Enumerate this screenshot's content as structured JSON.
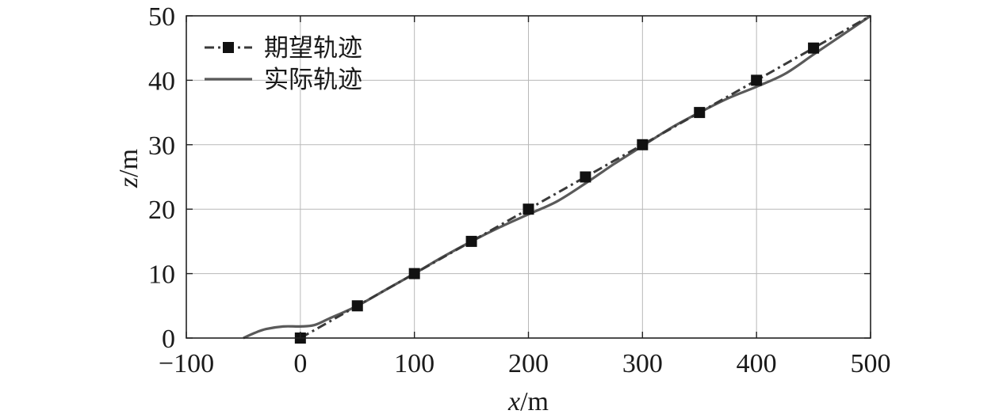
{
  "chart_data": {
    "type": "line",
    "xlabel": {
      "var": "x",
      "unit": "/m"
    },
    "ylabel": {
      "var": "z",
      "unit": "/m"
    },
    "xlim": [
      -100,
      500
    ],
    "ylim": [
      0,
      50
    ],
    "xticks": [
      -100,
      0,
      100,
      200,
      300,
      400,
      500
    ],
    "yticks": [
      0,
      10,
      20,
      30,
      40,
      50
    ],
    "xtick_labels": [
      "−100",
      "0",
      "100",
      "200",
      "300",
      "400",
      "500"
    ],
    "ytick_labels": [
      "0",
      "10",
      "20",
      "30",
      "40",
      "50"
    ],
    "grid": true,
    "legend_position": "top-left",
    "series": [
      {
        "name": "期望轨迹",
        "style": "dash-dot",
        "marker": "square",
        "color": "#3a3a3a",
        "x": [
          0,
          50,
          100,
          150,
          200,
          250,
          300,
          350,
          400,
          450,
          500
        ],
        "y": [
          0,
          5,
          10,
          15,
          20,
          25,
          30,
          35,
          40,
          45,
          50
        ]
      },
      {
        "name": "实际轨迹",
        "style": "solid",
        "marker": "none",
        "color": "#5a5a5a",
        "x": [
          -50,
          -40,
          -30,
          -15,
          0,
          12,
          25,
          50,
          75,
          100,
          125,
          150,
          175,
          200,
          225,
          250,
          275,
          300,
          325,
          350,
          375,
          400,
          425,
          450,
          475,
          500
        ],
        "y": [
          0,
          0.8,
          1.4,
          1.8,
          1.8,
          2.0,
          3.0,
          5.0,
          7.5,
          10.0,
          12.6,
          15.0,
          17.2,
          19.2,
          21.2,
          24.0,
          27.0,
          29.8,
          32.6,
          35.0,
          37.2,
          39.0,
          41.0,
          44.0,
          47.0,
          50.0
        ]
      }
    ]
  }
}
